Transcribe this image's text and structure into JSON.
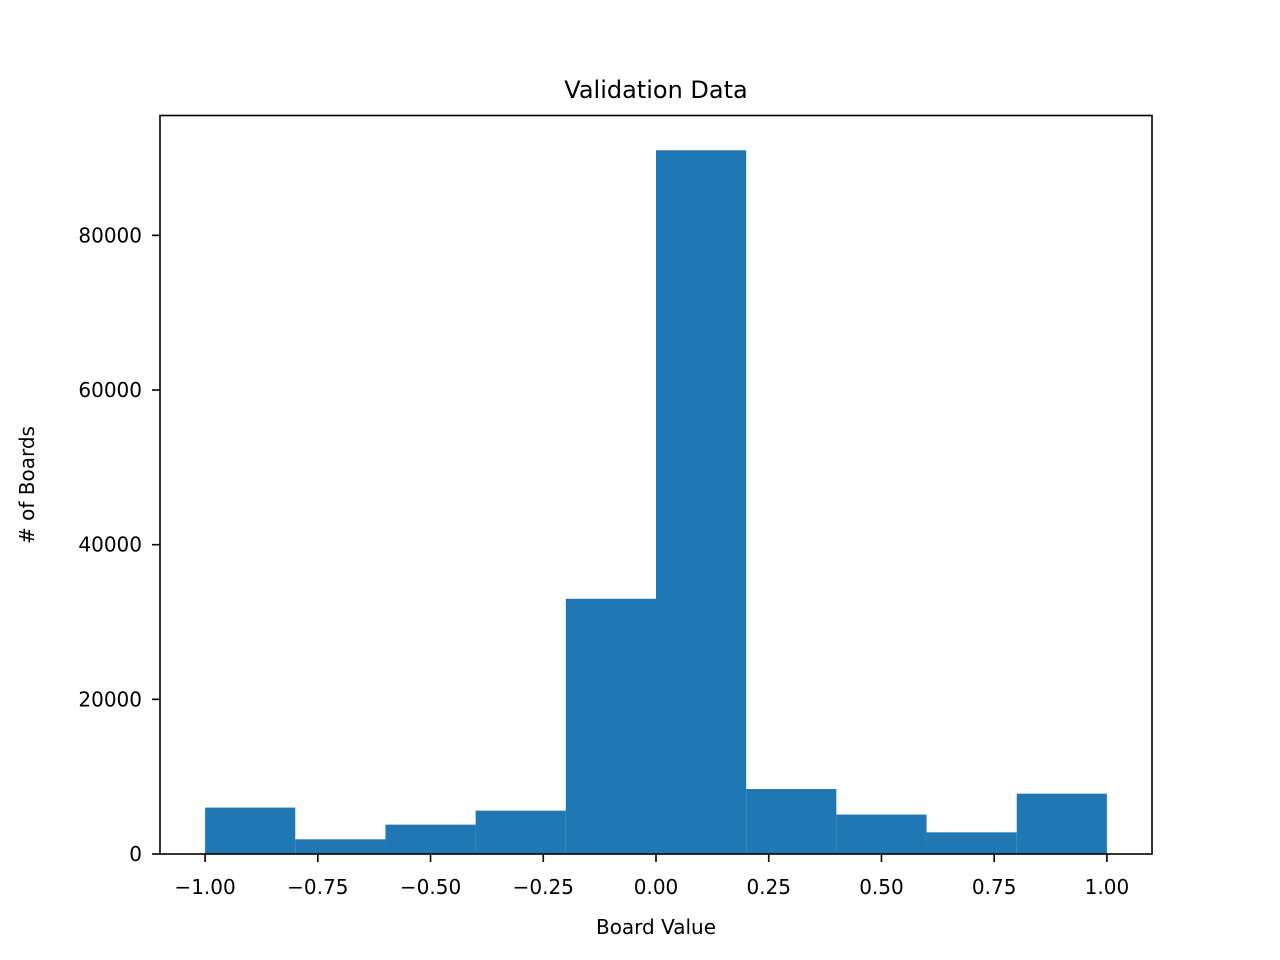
{
  "chart_data": {
    "type": "bar",
    "title": "Validation Data",
    "xlabel": "Board Value",
    "ylabel": "# of Boards",
    "bin_edges": [
      -1.0,
      -0.8,
      -0.6,
      -0.4,
      -0.2,
      0.0,
      0.2,
      0.4,
      0.6,
      0.8,
      1.0
    ],
    "values": [
      6000,
      1900,
      3800,
      5600,
      33000,
      91000,
      8400,
      5100,
      2800,
      7800
    ],
    "xlim": [
      -1.1,
      1.1
    ],
    "ylim": [
      0,
      95500
    ],
    "xticks": [
      -1.0,
      -0.75,
      -0.5,
      -0.25,
      0.0,
      0.25,
      0.5,
      0.75,
      1.0
    ],
    "xtick_labels": [
      "−1.00",
      "−0.75",
      "−0.50",
      "−0.25",
      "0.00",
      "0.25",
      "0.50",
      "0.75",
      "1.00"
    ],
    "yticks": [
      0,
      20000,
      40000,
      60000,
      80000
    ],
    "ytick_labels": [
      "0",
      "20000",
      "40000",
      "60000",
      "80000"
    ],
    "grid": false,
    "bar_color": "#1f77b4"
  }
}
